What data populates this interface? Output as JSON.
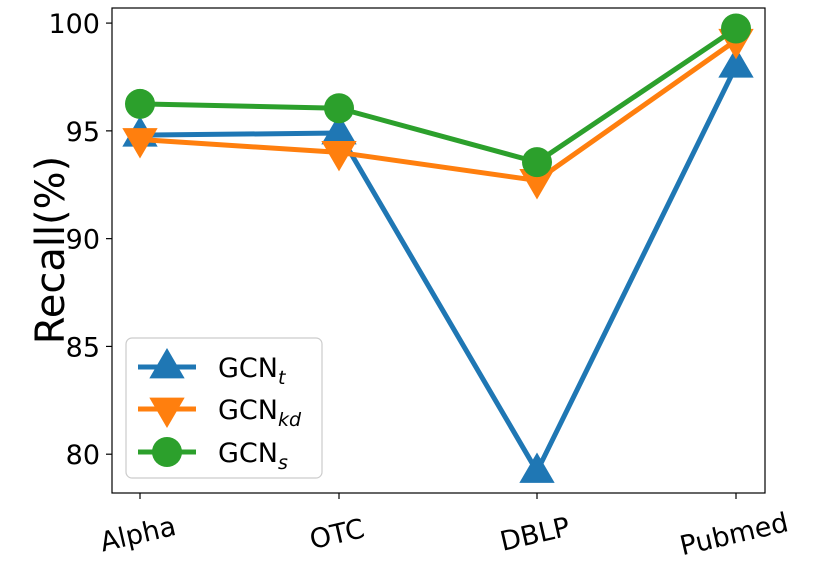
{
  "chart_data": {
    "type": "line",
    "title": "",
    "xlabel": "",
    "ylabel": "Recall(%)",
    "categories": [
      "Alpha",
      "OTC",
      "DBLP",
      "Pubmed"
    ],
    "ylim": [
      78.2,
      100.7
    ],
    "yticks": [
      80,
      85,
      90,
      95,
      100
    ],
    "ytick_labels": [
      "80",
      "85",
      "90",
      "95",
      "100"
    ],
    "grid": false,
    "legend_location": "lower-left",
    "series": [
      {
        "name": "GCN",
        "subscript": "t",
        "marker": "triangle-up",
        "color": "#1f77b4",
        "values": [
          94.8,
          94.9,
          79.2,
          98.0
        ]
      },
      {
        "name": "GCN",
        "subscript": "kd",
        "marker": "triangle-down",
        "color": "#ff7f0e",
        "values": [
          94.6,
          94.0,
          92.7,
          99.2
        ]
      },
      {
        "name": "GCN",
        "subscript": "s",
        "marker": "circle",
        "color": "#2ca02c",
        "values": [
          96.25,
          96.05,
          93.55,
          99.75
        ]
      }
    ]
  }
}
